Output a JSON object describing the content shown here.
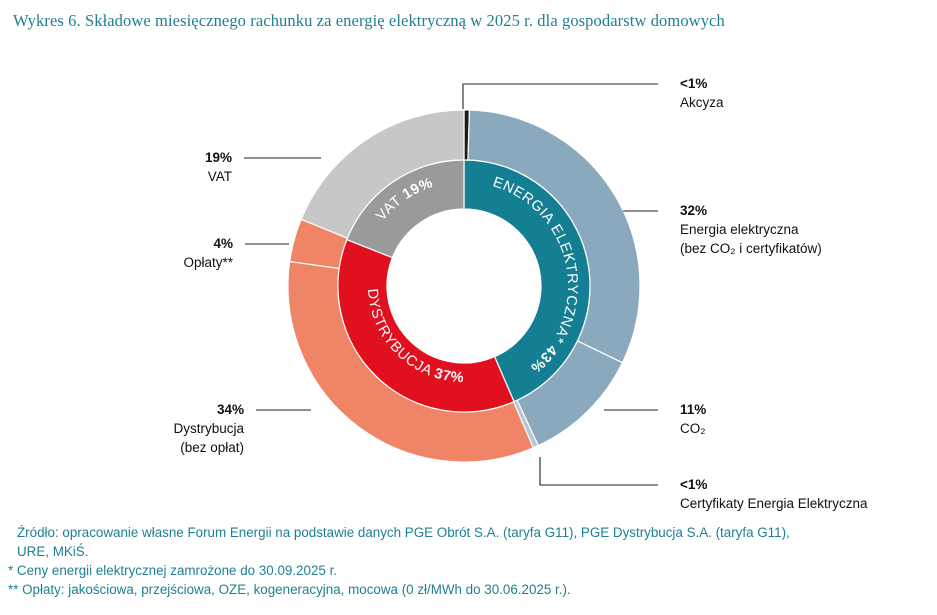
{
  "title": "Wykres 6. Składowe miesięcznego rachunku za energię elektryczną w 2025 r. dla gospodarstw domowych",
  "chart_data": {
    "type": "pie",
    "subtype": "nested-donut",
    "outer_ring": [
      {
        "key": "akcyza",
        "pct_label": "<1%",
        "value": 0.5,
        "color": "#1a1a1a",
        "label_lines": [
          "Akcyza"
        ]
      },
      {
        "key": "energia",
        "pct_label": "32%",
        "value": 32,
        "color": "#8aa9bd",
        "label_lines": [
          "Energia elektryczna",
          "(bez CO₂ i certyfikatów)"
        ]
      },
      {
        "key": "co2",
        "pct_label": "11%",
        "value": 11,
        "color": "#8aa9bd",
        "label_lines": [
          "CO₂"
        ]
      },
      {
        "key": "certyfikaty",
        "pct_label": "<1%",
        "value": 0.5,
        "color": "#b5c7d3",
        "label_lines": [
          "Certyfikaty Energia Elektryczna"
        ]
      },
      {
        "key": "dystrybucja",
        "pct_label": "34%",
        "value": 34,
        "color": "#ef8466",
        "label_lines": [
          "Dystrybucja",
          "(bez opłat)"
        ]
      },
      {
        "key": "oplaty",
        "pct_label": "4%",
        "value": 4,
        "color": "#ef8466",
        "label_lines": [
          "Opłaty**"
        ]
      },
      {
        "key": "vat",
        "pct_label": "19%",
        "value": 19,
        "color": "#c7c7c7",
        "label_lines": [
          "VAT"
        ]
      }
    ],
    "inner_ring": [
      {
        "key": "energia_el",
        "name": "ENERGIA ELEKTRYCZNA*",
        "pct_label": "43%",
        "value": 43.5,
        "color": "#147f93"
      },
      {
        "key": "dystrybucja",
        "name": "DYSTRYBUCJA",
        "pct_label": "37%",
        "value": 37.5,
        "color": "#e0101f"
      },
      {
        "key": "vat",
        "name": "VAT",
        "pct_label": "19%",
        "value": 19,
        "color": "#9a9a9a"
      }
    ]
  },
  "notes": {
    "source_line1": "Źródło: opracowanie własne Forum Energii na podstawie danych PGE Obrót S.A. (taryfa G11), PGE Dystrybucja S.A. (taryfa G11),",
    "source_line2": "URE, MKiŚ.",
    "footnote1": "* Ceny energii elektrycznej zamrożone do 30.09.2025 r.",
    "footnote2": "** Opłaty: jakościowa, przejściowa, OZE, kogeneracyjna, mocowa (0 zł/MWh do 30.06.2025 r.)."
  }
}
